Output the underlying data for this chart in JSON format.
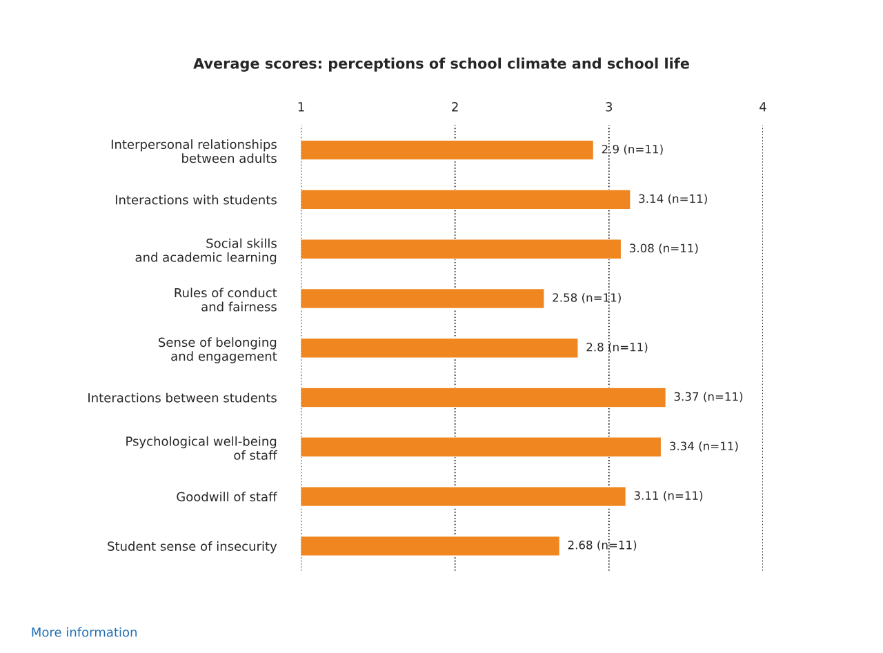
{
  "chart_data": {
    "type": "bar",
    "orientation": "horizontal",
    "title": "Average scores: perceptions of school climate and school life",
    "categories": [
      "Interpersonal relationships\nbetween adults",
      "Interactions with students",
      "Social skills\nand academic learning",
      "Rules of conduct\nand fairness",
      "Sense of belonging\nand engagement",
      "Interactions between students",
      "Psychological well-being\nof staff",
      "Goodwill of staff",
      "Student sense of insecurity"
    ],
    "values": [
      2.9,
      3.14,
      3.08,
      2.58,
      2.8,
      3.37,
      3.34,
      3.11,
      2.68
    ],
    "value_labels": [
      "2.9 (n=11)",
      "3.14 (n=11)",
      "3.08 (n=11)",
      "2.58 (n=11)",
      "2.8 (n=11)",
      "3.37 (n=11)",
      "3.34 (n=11)",
      "3.11 (n=11)",
      "2.68 (n=11)"
    ],
    "color": "#ef861f",
    "xlim": [
      1,
      4
    ],
    "xticks": [
      1,
      2,
      3,
      4
    ],
    "grid": "x",
    "annotations": [
      "More information"
    ]
  }
}
